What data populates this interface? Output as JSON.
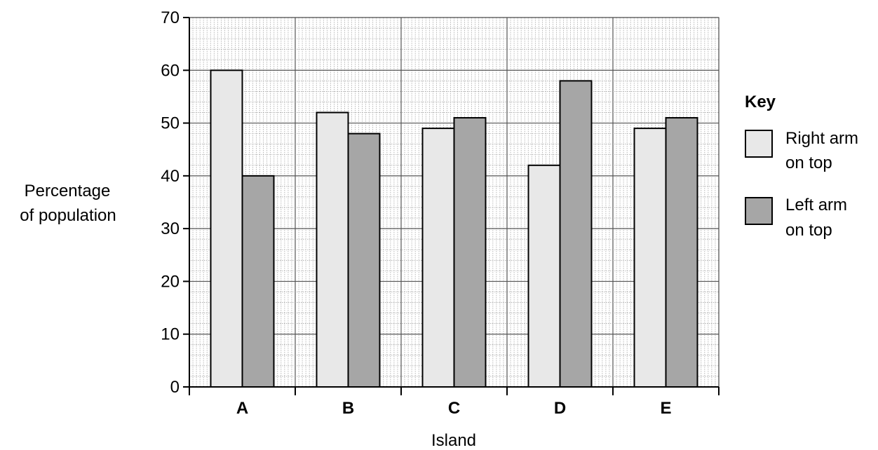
{
  "chart_data": {
    "type": "bar",
    "categories": [
      "A",
      "B",
      "C",
      "D",
      "E"
    ],
    "series": [
      {
        "name": "Right arm on top",
        "name_lines": [
          "Right arm",
          "on top"
        ],
        "values": [
          60,
          52,
          49,
          42,
          49
        ],
        "color": "#e8e8e8"
      },
      {
        "name": "Left arm on top",
        "name_lines": [
          "Left arm",
          "on top"
        ],
        "values": [
          40,
          48,
          51,
          58,
          51
        ],
        "color": "#a6a6a6"
      }
    ],
    "title": "",
    "xlabel": "Island",
    "ylabel_lines": [
      "Percentage",
      "of population"
    ],
    "ylim": [
      0,
      70
    ],
    "yticks": [
      0,
      10,
      20,
      30,
      40,
      50,
      60,
      70
    ],
    "grid": true,
    "minor_grid_per_major": 5,
    "legend_title": "Key",
    "legend_position": "right"
  }
}
